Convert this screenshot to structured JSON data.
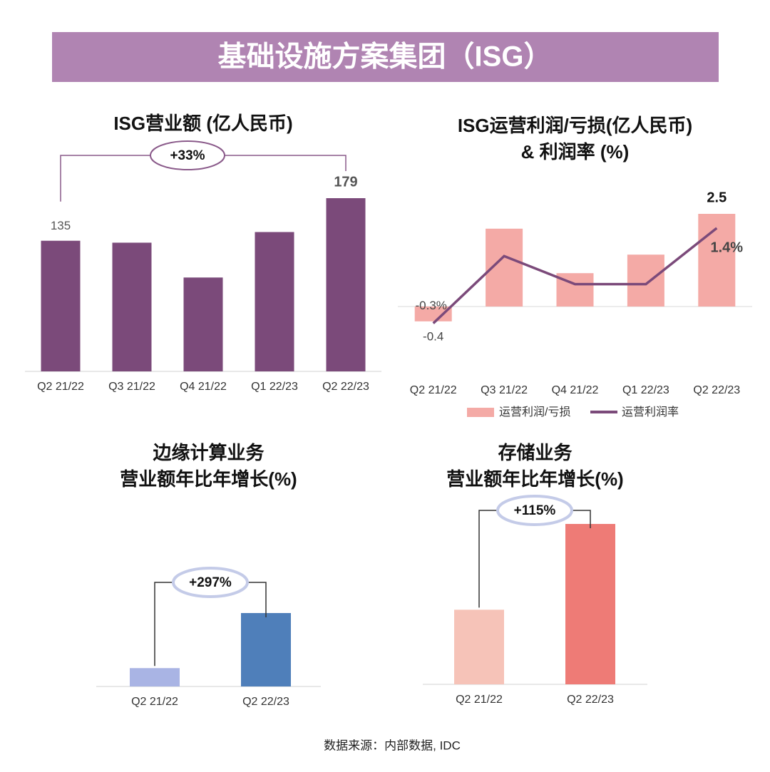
{
  "header": {
    "title": "基础设施方案集团（ISG）"
  },
  "footer": {
    "source": "数据来源：内部数据, IDC"
  },
  "chart_data": [
    {
      "type": "bar",
      "title": [
        "ISG营业额 (亿人民币)"
      ],
      "categories": [
        "Q2 21/22",
        "Q3 21/22",
        "Q4 21/22",
        "Q1 22/23",
        "Q2 22/23"
      ],
      "values": [
        135,
        133,
        97,
        144,
        179
      ],
      "value_labels": [
        "135",
        null,
        null,
        null,
        "179"
      ],
      "colors": [
        "#7b4a7a",
        "#7b4a7a",
        "#7b4a7a",
        "#7b4a7a",
        "#7b4a7a"
      ],
      "annotation": "+33%"
    },
    {
      "type": "combo",
      "title": [
        "ISG运营利润/亏损(亿人民币)",
        "& 利润率 (%)"
      ],
      "categories": [
        "Q2 21/22",
        "Q3 21/22",
        "Q4 21/22",
        "Q1 22/23",
        "Q2 22/23"
      ],
      "series": [
        {
          "name": "运营利润/亏损",
          "color": "#f4aaa6",
          "kind": "bar",
          "values": [
            -0.4,
            2.1,
            0.9,
            1.4,
            2.5
          ],
          "value_labels": [
            "-0.4",
            null,
            null,
            null,
            "2.5"
          ]
        },
        {
          "name": "运营利润率",
          "color": "#7b4a7a",
          "kind": "line",
          "axis": "y2",
          "values": [
            -0.3,
            0.9,
            0.4,
            0.4,
            1.4
          ],
          "value_labels": [
            "-0.3%",
            null,
            null,
            null,
            "1.4%"
          ]
        }
      ]
    },
    {
      "type": "bar",
      "title": [
        "边缘计算业务",
        "营业额年比年增长(%)"
      ],
      "categories": [
        "Q2 21/22",
        "Q2 22/23"
      ],
      "values": [
        25,
        100
      ],
      "colors": [
        "#a9b4e4",
        "#4f7fba"
      ],
      "annotation": "+297%"
    },
    {
      "type": "bar",
      "title": [
        "存储业务",
        "营业额年比年增长(%)"
      ],
      "categories": [
        "Q2 21/22",
        "Q2 22/23"
      ],
      "values": [
        100,
        215
      ],
      "colors": [
        "#f6c3b8",
        "#ee7b76"
      ],
      "annotation": "+115%"
    }
  ]
}
